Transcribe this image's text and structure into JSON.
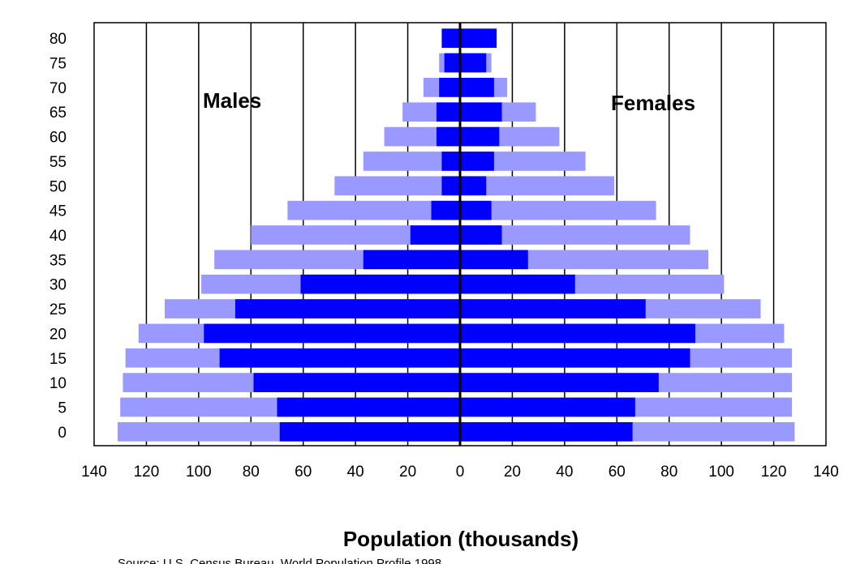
{
  "chart_data": {
    "type": "bar",
    "orientation": "horizontal",
    "layout": "population-pyramid",
    "age_groups": [
      "0",
      "5",
      "10",
      "15",
      "20",
      "25",
      "30",
      "35",
      "40",
      "45",
      "50",
      "55",
      "60",
      "65",
      "70",
      "75",
      "80"
    ],
    "xlabel": "Population (thousands)",
    "x_ticks": [
      "140",
      "120",
      "100",
      "80",
      "60",
      "40",
      "20",
      "0",
      "20",
      "40",
      "60",
      "80",
      "100",
      "120",
      "140"
    ],
    "xlim": [
      -140,
      140
    ],
    "grid": true,
    "annotations": [
      {
        "text": "Males",
        "side": "left"
      },
      {
        "text": "Females",
        "side": "right"
      }
    ],
    "source_note": "Source: U.S. Census Bureau, World Population Profile 1998",
    "colors": {
      "outer_bar": "#9999ff",
      "inner_bar": "#0000ff",
      "center_axis": "#000000",
      "grid": "#000000"
    },
    "series": [
      {
        "side": "males",
        "layer": "outer",
        "values": [
          131,
          130,
          129,
          128,
          123,
          113,
          99,
          94,
          80,
          66,
          48,
          37,
          29,
          22,
          14,
          8,
          7
        ]
      },
      {
        "side": "males",
        "layer": "inner",
        "values": [
          69,
          70,
          79,
          92,
          98,
          86,
          61,
          37,
          19,
          11,
          7,
          7,
          9,
          9,
          8,
          6,
          7
        ]
      },
      {
        "side": "females",
        "layer": "outer",
        "values": [
          128,
          127,
          127,
          127,
          124,
          115,
          101,
          95,
          88,
          75,
          59,
          48,
          38,
          29,
          18,
          12,
          14
        ]
      },
      {
        "side": "females",
        "layer": "inner",
        "values": [
          66,
          67,
          76,
          88,
          90,
          71,
          44,
          26,
          16,
          12,
          10,
          13,
          15,
          16,
          13,
          10,
          14
        ]
      }
    ]
  }
}
